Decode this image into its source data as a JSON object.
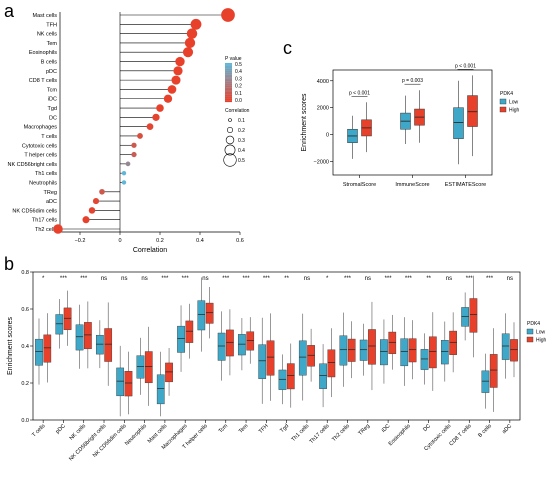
{
  "panel_labels": {
    "a": "a",
    "b": "b",
    "c": "c"
  },
  "chart_data": [
    {
      "type": "lollipop",
      "panel": "a",
      "xlabel": "Correlation",
      "xlim": [
        -0.3,
        0.6
      ],
      "xticks": [
        -0.2,
        0.0,
        0.2,
        0.4,
        0.6
      ],
      "xtick_labels": [
        "−0.2",
        "0",
        "0.2",
        "0.4",
        "0.6"
      ],
      "categories": [
        "Mast cells",
        "TFH",
        "NK cells",
        "Tem",
        "Eosinophils",
        "B cells",
        "pDC",
        "CD8 T cells",
        "Tcm",
        "iDC",
        "Tgd",
        "DC",
        "Macrophages",
        "T cells",
        "Cytotoxic cells",
        "T helper cells",
        "NK CD56bright cells",
        "Th1 cells",
        "Neutrophils",
        "TReg",
        "aDC",
        "NK CD56dim cells",
        "Th17 cells",
        "Th2 cells"
      ],
      "correlation": [
        0.54,
        0.38,
        0.36,
        0.35,
        0.34,
        0.3,
        0.29,
        0.28,
        0.26,
        0.24,
        0.2,
        0.18,
        0.15,
        0.1,
        0.07,
        0.07,
        0.04,
        0.02,
        0.02,
        -0.09,
        -0.12,
        -0.14,
        -0.17,
        -0.31
      ],
      "pvalue": [
        0.0,
        0.0,
        0.0,
        0.0,
        0.0,
        0.0,
        0.0,
        0.0,
        0.0,
        0.0,
        0.0,
        0.01,
        0.02,
        0.06,
        0.1,
        0.12,
        0.3,
        0.5,
        0.55,
        0.1,
        0.02,
        0.01,
        0.0,
        0.0
      ],
      "legend_pvalue": {
        "title": "P value",
        "ticks": [
          "0.5",
          "0.4",
          "0.3",
          "0.2",
          "0.1",
          "0.0"
        ]
      },
      "legend_correlation": {
        "title": "Correlation",
        "ticks": [
          "0.1",
          "0.2",
          "0.3",
          "0.4",
          "0.5"
        ]
      },
      "colors": {
        "low_p": "#e8412b",
        "high_p": "#5fb6d8"
      }
    },
    {
      "type": "boxplot",
      "panel": "b",
      "ylabel": "Enrichment scores",
      "ylim": [
        0.0,
        0.8
      ],
      "yticks": [
        "0.0",
        "0.2",
        "0.4",
        "0.6",
        "0.8"
      ],
      "legend": {
        "title": "PDK4",
        "items": [
          {
            "name": "Low",
            "color": "#3fa8c8"
          },
          {
            "name": "High",
            "color": "#e8412b"
          }
        ]
      },
      "categories": [
        "T cells",
        "pDC",
        "NK cells",
        "NK CD56bright cells",
        "NK CD56dim cells",
        "Neutrophils",
        "Mast cells",
        "Macrophages",
        "T helper cells",
        "Tcm",
        "Tem",
        "TFH",
        "Tgd",
        "Th1 cells",
        "Th17 cells",
        "Th2 cells",
        "TReg",
        "iDC",
        "Eosinophils",
        "DC",
        "Cytotoxic cells",
        "CD8 T cells",
        "B cells",
        "aDC"
      ],
      "significance": [
        "*",
        "***",
        "***",
        "ns",
        "ns",
        "ns",
        "***",
        "***",
        "ns",
        "***",
        "***",
        "***",
        "**",
        "ns",
        "*",
        "***",
        "ns",
        "***",
        "***",
        "**",
        "ns",
        "***",
        "***",
        "ns"
      ],
      "low_medians": [
        0.37,
        0.52,
        0.45,
        0.41,
        0.21,
        0.29,
        0.17,
        0.44,
        0.57,
        0.4,
        0.41,
        0.32,
        0.22,
        0.34,
        0.24,
        0.38,
        0.38,
        0.37,
        0.37,
        0.33,
        0.37,
        0.56,
        0.21,
        0.4
      ],
      "high_medians": [
        0.39,
        0.55,
        0.46,
        0.41,
        0.2,
        0.29,
        0.26,
        0.48,
        0.58,
        0.42,
        0.43,
        0.34,
        0.24,
        0.35,
        0.31,
        0.38,
        0.4,
        0.42,
        0.38,
        0.37,
        0.42,
        0.57,
        0.27,
        0.38
      ]
    },
    {
      "type": "boxplot",
      "panel": "c",
      "ylabel": "Enrichment scores",
      "ylim": [
        -3000,
        4200
      ],
      "yticks": [
        "−2000",
        "0",
        "2000",
        "4000"
      ],
      "categories": [
        "StromalScore",
        "ImmuneScore",
        "ESTIMATEScore"
      ],
      "pvalues": [
        "p < 0.001",
        "p = 0.003",
        "p < 0.001"
      ],
      "legend": {
        "title": "PDK4",
        "items": [
          {
            "name": "Low",
            "color": "#3fa8c8"
          },
          {
            "name": "High",
            "color": "#e8412b"
          }
        ]
      },
      "low": [
        {
          "q1": -600,
          "median": -100,
          "q3": 400,
          "min": -1800,
          "max": 1400
        },
        {
          "q1": 400,
          "median": 1000,
          "q3": 1600,
          "min": -700,
          "max": 2900
        },
        {
          "q1": -300,
          "median": 900,
          "q3": 2000,
          "min": -2200,
          "max": 4000
        }
      ],
      "high": [
        {
          "q1": -100,
          "median": 500,
          "q3": 1100,
          "min": -1300,
          "max": 2400
        },
        {
          "q1": 700,
          "median": 1300,
          "q3": 1900,
          "min": -600,
          "max": 3300
        },
        {
          "q1": 600,
          "median": 1700,
          "q3": 2900,
          "min": -1600,
          "max": 4400
        }
      ]
    }
  ]
}
